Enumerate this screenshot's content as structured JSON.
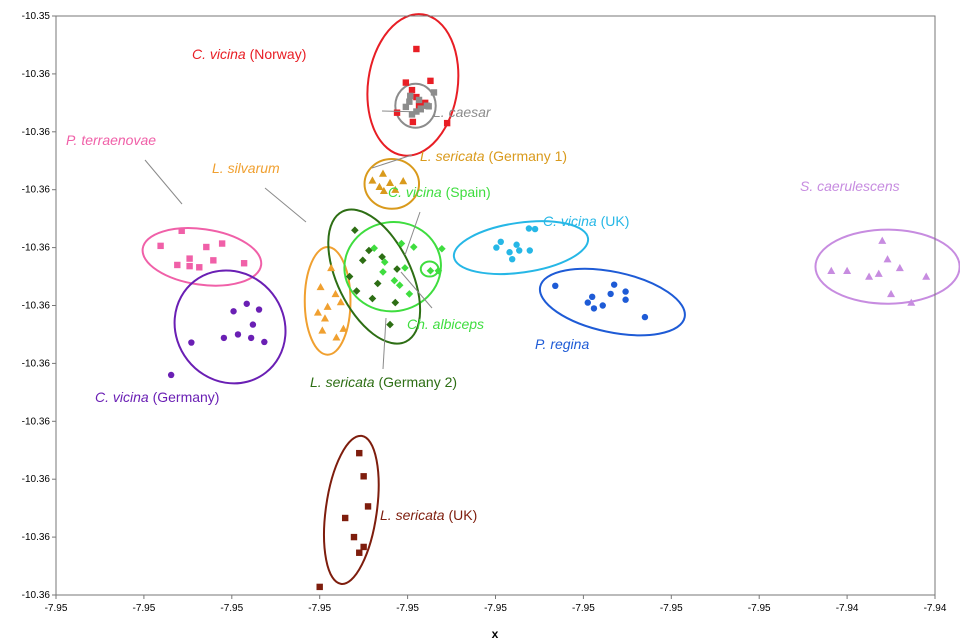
{
  "chart_data": {
    "type": "scatter",
    "title": "",
    "xlabel": "x",
    "ylabel": "",
    "grid": false,
    "legend": "none",
    "x_tick_labels": [
      "-7.95",
      "-7.95",
      "-7.95",
      "-7.95",
      "-7.95",
      "-7.95",
      "-7.95",
      "-7.95",
      "-7.95",
      "-7.94",
      "-7.94"
    ],
    "y_tick_labels": [
      "-10.35",
      "-10.36",
      "-10.36",
      "-10.36",
      "-10.36",
      "-10.36",
      "-10.36",
      "-10.36",
      "-10.36",
      "-10.36",
      "-10.36"
    ],
    "xlim": [
      0,
      10
    ],
    "ylim": [
      0,
      10
    ],
    "groups": [
      {
        "name": "C. vicina",
        "qualifier": " (Norway)",
        "color": "#e81e25",
        "marker": "square",
        "ellipse": {
          "cx": 4.06,
          "cy": 8.81,
          "rx": 0.51,
          "ry": 1.23,
          "angle": 8
        },
        "points": [
          [
            4.1,
            9.43
          ],
          [
            3.98,
            8.85
          ],
          [
            4.26,
            8.88
          ],
          [
            4.05,
            8.72
          ],
          [
            4.13,
            8.45
          ],
          [
            3.88,
            8.33
          ],
          [
            4.06,
            8.17
          ],
          [
            4.45,
            8.15
          ],
          [
            4.2,
            8.5
          ],
          [
            4.1,
            8.6
          ]
        ]
      },
      {
        "name": "L. caesar",
        "qualifier": "",
        "color": "#8c8c8c",
        "marker": "square",
        "ellipse": {
          "cx": 4.09,
          "cy": 8.45,
          "rx": 0.23,
          "ry": 0.38,
          "angle": 0
        },
        "points": [
          [
            4.03,
            8.62
          ],
          [
            4.13,
            8.55
          ],
          [
            4.22,
            8.45
          ],
          [
            3.98,
            8.43
          ],
          [
            4.1,
            8.35
          ],
          [
            4.3,
            8.68
          ],
          [
            4.05,
            8.3
          ],
          [
            4.15,
            8.4
          ],
          [
            4.24,
            8.44
          ],
          [
            4.02,
            8.52
          ]
        ]
      },
      {
        "name": "L. sericata",
        "qualifier": " (Germany 1)",
        "color": "#d99a1c",
        "marker": "triangle",
        "ellipse": {
          "cx": 3.82,
          "cy": 7.1,
          "rx": 0.31,
          "ry": 0.43,
          "angle": 0
        },
        "points": [
          [
            3.6,
            7.16
          ],
          [
            3.73,
            6.98
          ],
          [
            3.86,
            7.0
          ],
          [
            3.95,
            7.15
          ],
          [
            3.72,
            7.28
          ],
          [
            3.8,
            7.12
          ],
          [
            3.68,
            7.05
          ]
        ]
      },
      {
        "name": "P. terraenovae",
        "qualifier": "",
        "color": "#f060a8",
        "marker": "square",
        "ellipse": {
          "cx": 1.66,
          "cy": 5.84,
          "rx": 0.68,
          "ry": 0.48,
          "angle": 8
        },
        "points": [
          [
            1.43,
            6.29
          ],
          [
            1.19,
            6.03
          ],
          [
            1.71,
            6.01
          ],
          [
            1.89,
            6.07
          ],
          [
            1.52,
            5.81
          ],
          [
            2.14,
            5.73
          ],
          [
            1.63,
            5.66
          ],
          [
            1.38,
            5.7
          ],
          [
            1.79,
            5.78
          ],
          [
            1.52,
            5.68
          ]
        ]
      },
      {
        "name": "L. silvarum",
        "qualifier": "",
        "color": "#f0a030",
        "marker": "triangle",
        "ellipse": {
          "cx": 3.09,
          "cy": 5.08,
          "rx": 0.26,
          "ry": 0.93,
          "angle": 0
        },
        "points": [
          [
            3.13,
            5.65
          ],
          [
            3.01,
            5.32
          ],
          [
            3.24,
            5.06
          ],
          [
            2.98,
            4.88
          ],
          [
            3.06,
            4.78
          ],
          [
            3.27,
            4.6
          ],
          [
            3.03,
            4.57
          ],
          [
            3.19,
            4.45
          ],
          [
            3.18,
            5.2
          ],
          [
            3.09,
            4.98
          ]
        ]
      },
      {
        "name": "C. vicina",
        "qualifier": " (Spain)",
        "color": "#3fdd3f",
        "marker": "diamond",
        "ellipse": {
          "cx": 3.83,
          "cy": 5.67,
          "rx": 0.55,
          "ry": 0.77,
          "angle": -8
        },
        "points": [
          [
            3.62,
            5.99
          ],
          [
            3.93,
            6.07
          ],
          [
            4.07,
            6.01
          ],
          [
            4.39,
            5.98
          ],
          [
            3.74,
            5.75
          ],
          [
            3.97,
            5.65
          ],
          [
            4.35,
            5.6
          ],
          [
            3.85,
            5.43
          ],
          [
            4.02,
            5.2
          ],
          [
            3.91,
            5.35
          ],
          [
            3.72,
            5.58
          ]
        ]
      },
      {
        "name": "L. sericata",
        "qualifier": " (Germany 2)",
        "color": "#2d6e14",
        "marker": "diamond",
        "ellipse": {
          "cx": 3.62,
          "cy": 5.5,
          "rx": 0.42,
          "ry": 1.25,
          "angle": -26
        },
        "points": [
          [
            3.4,
            6.3
          ],
          [
            3.56,
            5.95
          ],
          [
            3.71,
            5.84
          ],
          [
            3.49,
            5.78
          ],
          [
            3.88,
            5.63
          ],
          [
            3.34,
            5.5
          ],
          [
            3.66,
            5.38
          ],
          [
            3.6,
            5.12
          ],
          [
            3.86,
            5.05
          ],
          [
            3.8,
            4.67
          ],
          [
            3.42,
            5.25
          ]
        ]
      },
      {
        "name": "Ch. albiceps",
        "qualifier": "",
        "color": "#3fdd3f",
        "marker": "diamond",
        "ellipse": {
          "cx": 4.25,
          "cy": 5.63,
          "rx": 0.1,
          "ry": 0.13,
          "angle": 0
        },
        "points": [
          [
            4.26,
            5.6
          ]
        ]
      },
      {
        "name": "C. vicina",
        "qualifier": " (UK)",
        "color": "#26b7e6",
        "marker": "circle",
        "ellipse": {
          "cx": 5.29,
          "cy": 6.0,
          "rx": 0.77,
          "ry": 0.43,
          "angle": -8
        },
        "points": [
          [
            5.38,
            6.33
          ],
          [
            5.45,
            6.32
          ],
          [
            5.06,
            6.1
          ],
          [
            5.24,
            6.05
          ],
          [
            5.01,
            6.0
          ],
          [
            5.16,
            5.92
          ],
          [
            5.39,
            5.95
          ],
          [
            5.19,
            5.8
          ],
          [
            5.27,
            5.95
          ]
        ]
      },
      {
        "name": "P. regina",
        "qualifier": "",
        "color": "#1e5bd6",
        "marker": "circle",
        "ellipse": {
          "cx": 6.33,
          "cy": 5.06,
          "rx": 0.84,
          "ry": 0.52,
          "angle": 12
        },
        "points": [
          [
            5.68,
            5.34
          ],
          [
            6.1,
            5.15
          ],
          [
            6.35,
            5.36
          ],
          [
            6.31,
            5.2
          ],
          [
            6.12,
            4.95
          ],
          [
            6.48,
            5.1
          ],
          [
            6.7,
            4.8
          ],
          [
            6.22,
            5.0
          ],
          [
            6.48,
            5.24
          ],
          [
            6.05,
            5.05
          ]
        ]
      },
      {
        "name": "C. vicina",
        "qualifier": " (Germany)",
        "color": "#6a1fb4",
        "marker": "circle",
        "ellipse": {
          "cx": 1.98,
          "cy": 4.63,
          "rx": 0.66,
          "ry": 0.93,
          "angle": 52
        },
        "points": [
          [
            2.17,
            5.03
          ],
          [
            2.31,
            4.93
          ],
          [
            2.02,
            4.9
          ],
          [
            2.24,
            4.67
          ],
          [
            2.07,
            4.5
          ],
          [
            2.22,
            4.44
          ],
          [
            1.91,
            4.44
          ],
          [
            2.37,
            4.37
          ],
          [
            1.54,
            4.36
          ],
          [
            1.31,
            3.8
          ]
        ]
      },
      {
        "name": "S. caerulescens",
        "qualifier": "",
        "color": "#c78ce0",
        "marker": "triangle",
        "ellipse": {
          "cx": 9.46,
          "cy": 5.67,
          "rx": 0.82,
          "ry": 0.64,
          "angle": 0
        },
        "points": [
          [
            9.4,
            6.12
          ],
          [
            9.46,
            5.8
          ],
          [
            8.82,
            5.6
          ],
          [
            9.25,
            5.5
          ],
          [
            9.36,
            5.55
          ],
          [
            9.6,
            5.65
          ],
          [
            9.9,
            5.5
          ],
          [
            9.5,
            5.2
          ],
          [
            9.73,
            5.05
          ],
          [
            9.0,
            5.6
          ]
        ]
      },
      {
        "name": "L. sericata",
        "qualifier": " (UK)",
        "color": "#7e1d0d",
        "marker": "square",
        "ellipse": {
          "cx": 3.36,
          "cy": 1.47,
          "rx": 0.29,
          "ry": 1.29,
          "angle": 8
        },
        "points": [
          [
            3.45,
            2.45
          ],
          [
            3.5,
            2.05
          ],
          [
            3.55,
            1.53
          ],
          [
            3.29,
            1.33
          ],
          [
            3.39,
            1.0
          ],
          [
            3.5,
            0.83
          ],
          [
            3.45,
            0.73
          ],
          [
            3.0,
            0.14
          ]
        ]
      }
    ]
  }
}
